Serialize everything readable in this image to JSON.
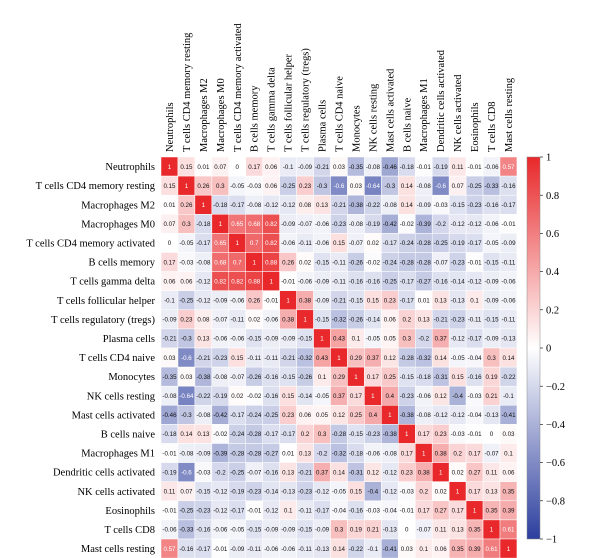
{
  "chart_data": {
    "type": "heatmap",
    "title": "",
    "labels": [
      "Neutrophils",
      "T cells CD4 memory resting",
      "Macrophages M2",
      "Macrophages M0",
      "T cells CD4 memory activated",
      "B cells memory",
      "T cells gamma delta",
      "T cells follicular helper",
      "T cells regulatory (tregs)",
      "Plasma cells",
      "T cells CD4 naive",
      "Monocytes",
      "NK cells resting",
      "Mast cells activated",
      "B cells naive",
      "Macrophages M1",
      "Dendritic cells activated",
      "NK cells activated",
      "Eosinophils",
      "T cells CD8",
      "Mast cells resting"
    ],
    "matrix": [
      [
        "1",
        "0.15",
        "0.01",
        "0.07",
        "0",
        "0.17",
        "0.06",
        "-0.1",
        "-0.09",
        "-0.21",
        "0.03",
        "-0.35",
        "-0.08",
        "-0.46",
        "-0.18",
        "-0.01",
        "-0.19",
        "0.11",
        "-0.01",
        "-0.06",
        "0.57"
      ],
      [
        "0.15",
        "1",
        "0.26",
        "0.3",
        "-0.05",
        "-0.03",
        "0.06",
        "-0.25",
        "0.23",
        "-0.3",
        "-0.6",
        "0.03",
        "-0.64",
        "-0.3",
        "0.14",
        "-0.08",
        "-0.6",
        "0.07",
        "-0.25",
        "-0.33",
        "-0.16"
      ],
      [
        "0.01",
        "0.26",
        "1",
        "-0.18",
        "-0.17",
        "-0.08",
        "-0.12",
        "-0.12",
        "0.08",
        "0.13",
        "-0.21",
        "-0.38",
        "-0.22",
        "-0.08",
        "0.14",
        "-0.09",
        "-0.03",
        "-0.15",
        "-0.23",
        "-0.16",
        "-0.17"
      ],
      [
        "0.07",
        "0.3",
        "-0.18",
        "1",
        "0.65",
        "0.68",
        "0.82",
        "-0.09",
        "-0.07",
        "-0.06",
        "-0.23",
        "-0.08",
        "-0.19",
        "-0.42",
        "-0.02",
        "-0.39",
        "-0.2",
        "-0.12",
        "-0.12",
        "-0.06",
        "-0.01"
      ],
      [
        "0",
        "-0.05",
        "-0.17",
        "0.65",
        "1",
        "0.7",
        "0.82",
        "-0.06",
        "-0.11",
        "-0.06",
        "0.15",
        "-0.07",
        "0.02",
        "-0.17",
        "-0.24",
        "-0.28",
        "-0.25",
        "-0.19",
        "-0.17",
        "-0.05",
        "-0.09"
      ],
      [
        "0.17",
        "-0.03",
        "-0.08",
        "0.68",
        "0.7",
        "1",
        "0.88",
        "0.26",
        "0.02",
        "-0.15",
        "-0.11",
        "-0.26",
        "-0.02",
        "-0.24",
        "-0.28",
        "-0.28",
        "-0.07",
        "-0.23",
        "-0.01",
        "-0.15",
        "-0.11"
      ],
      [
        "0.06",
        "0.06",
        "-0.12",
        "0.82",
        "0.82",
        "0.88",
        "1",
        "-0.01",
        "-0.06",
        "-0.09",
        "-0.11",
        "-0.16",
        "-0.16",
        "-0.25",
        "-0.17",
        "-0.27",
        "-0.16",
        "-0.14",
        "-0.12",
        "-0.09",
        "-0.06"
      ],
      [
        "-0.1",
        "-0.25",
        "-0.12",
        "-0.09",
        "-0.06",
        "0.26",
        "-0.01",
        "1",
        "0.38",
        "-0.09",
        "-0.21",
        "-0.15",
        "0.15",
        "0.23",
        "-0.17",
        "0.01",
        "0.13",
        "-0.13",
        "0.1",
        "-0.09",
        "-0.06"
      ],
      [
        "-0.09",
        "0.23",
        "0.08",
        "-0.07",
        "-0.11",
        "0.02",
        "-0.06",
        "0.38",
        "1",
        "-0.15",
        "-0.32",
        "-0.26",
        "-0.14",
        "0.06",
        "0.2",
        "0.13",
        "-0.21",
        "-0.23",
        "-0.11",
        "-0.15",
        "-0.11"
      ],
      [
        "-0.21",
        "-0.3",
        "0.13",
        "-0.06",
        "-0.06",
        "-0.15",
        "-0.09",
        "-0.09",
        "-0.15",
        "1",
        "0.43",
        "0.1",
        "-0.05",
        "0.05",
        "0.3",
        "-0.2",
        "0.37",
        "-0.12",
        "-0.17",
        "-0.09",
        "-0.13"
      ],
      [
        "0.03",
        "-0.6",
        "-0.21",
        "-0.23",
        "0.15",
        "-0.11",
        "-0.11",
        "-0.21",
        "-0.32",
        "0.43",
        "1",
        "0.29",
        "0.37",
        "0.12",
        "-0.28",
        "-0.32",
        "0.14",
        "-0.05",
        "-0.04",
        "0.3",
        "0.14"
      ],
      [
        "-0.35",
        "0.03",
        "-0.38",
        "-0.08",
        "-0.07",
        "-0.26",
        "-0.16",
        "-0.15",
        "-0.26",
        "0.1",
        "0.29",
        "1",
        "0.17",
        "0.25",
        "-0.15",
        "-0.18",
        "-0.31",
        "0.15",
        "-0.16",
        "0.19",
        "-0.22"
      ],
      [
        "-0.08",
        "-0.64",
        "-0.22",
        "-0.19",
        "0.02",
        "-0.02",
        "-0.16",
        "0.15",
        "-0.14",
        "-0.05",
        "0.37",
        "0.17",
        "1",
        "0.4",
        "-0.23",
        "-0.06",
        "0.12",
        "-0.4",
        "-0.03",
        "0.21",
        "-0.1"
      ],
      [
        "-0.46",
        "-0.3",
        "-0.08",
        "-0.42",
        "-0.17",
        "-0.24",
        "-0.25",
        "0.23",
        "0.06",
        "0.05",
        "0.12",
        "0.25",
        "0.4",
        "1",
        "-0.38",
        "-0.08",
        "-0.12",
        "-0.12",
        "-0.04",
        "-0.13",
        "-0.41"
      ],
      [
        "-0.18",
        "0.14",
        "0.13",
        "-0.02",
        "-0.24",
        "-0.28",
        "-0.17",
        "-0.17",
        "0.2",
        "0.3",
        "-0.28",
        "-0.15",
        "-0.23",
        "-0.38",
        "1",
        "0.17",
        "0.23",
        "-0.03",
        "-0.01",
        "0",
        "0.03"
      ],
      [
        "-0.01",
        "-0.08",
        "-0.09",
        "-0.39",
        "-0.28",
        "-0.28",
        "-0.27",
        "0.01",
        "0.13",
        "-0.2",
        "-0.32",
        "-0.18",
        "-0.06",
        "-0.08",
        "0.17",
        "1",
        "0.38",
        "0.2",
        "0.17",
        "-0.07",
        "0.1"
      ],
      [
        "-0.19",
        "-0.6",
        "-0.03",
        "-0.2",
        "-0.25",
        "-0.07",
        "-0.16",
        "0.13",
        "-0.21",
        "0.37",
        "0.14",
        "-0.31",
        "0.12",
        "-0.12",
        "0.23",
        "0.38",
        "1",
        "0.02",
        "0.27",
        "0.11",
        "0.06"
      ],
      [
        "0.11",
        "0.07",
        "-0.15",
        "-0.12",
        "-0.19",
        "-0.23",
        "-0.14",
        "-0.13",
        "-0.23",
        "-0.12",
        "-0.05",
        "0.15",
        "-0.4",
        "-0.12",
        "-0.03",
        "0.2",
        "0.02",
        "1",
        "0.17",
        "0.13",
        "0.35"
      ],
      [
        "-0.01",
        "-0.25",
        "-0.23",
        "-0.12",
        "-0.17",
        "-0.01",
        "-0.12",
        "0.1",
        "-0.11",
        "-0.17",
        "-0.04",
        "-0.16",
        "-0.03",
        "-0.04",
        "-0.01",
        "0.17",
        "0.27",
        "0.17",
        "1",
        "0.35",
        "0.39"
      ],
      [
        "-0.06",
        "-0.33",
        "-0.16",
        "-0.06",
        "-0.05",
        "-0.15",
        "-0.09",
        "-0.09",
        "-0.15",
        "-0.09",
        "0.3",
        "0.19",
        "0.21",
        "-0.13",
        "0",
        "-0.07",
        "0.11",
        "0.13",
        "0.35",
        "1",
        "0.61"
      ],
      [
        "0.57",
        "-0.16",
        "-0.17",
        "-0.01",
        "-0.09",
        "-0.11",
        "-0.06",
        "-0.06",
        "-0.11",
        "-0.13",
        "0.14",
        "-0.22",
        "-0.1",
        "-0.41",
        "0.03",
        "0.1",
        "0.06",
        "0.35",
        "0.39",
        "0.61",
        "1"
      ]
    ],
    "color_range": [
      -1,
      1
    ],
    "colorbar_ticks": [
      "1",
      "0.8",
      "0.6",
      "0.4",
      "0.2",
      "0",
      "−0.2",
      "−0.4",
      "−0.6",
      "−0.8",
      "−1"
    ],
    "colors": {
      "positive": "#e8282a",
      "neutral": "#ffffff",
      "negative": "#2c3e9e"
    },
    "legend_placement": "right",
    "grid": true
  }
}
